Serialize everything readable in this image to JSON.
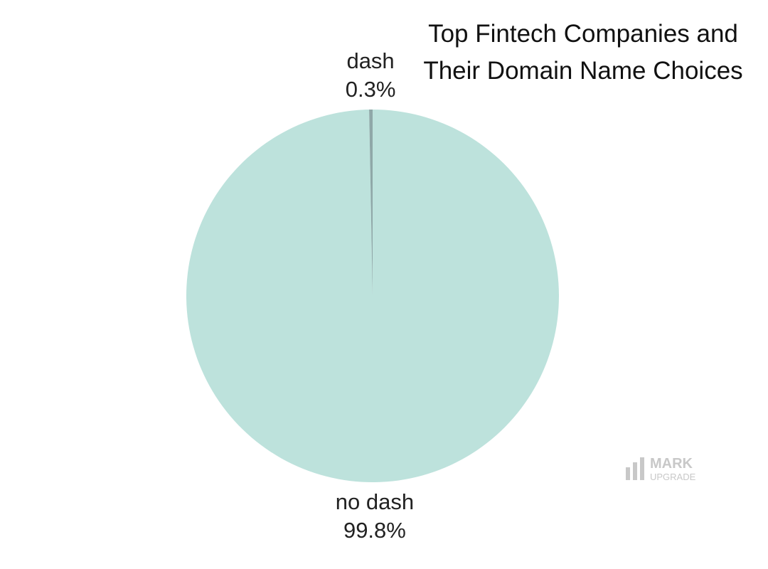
{
  "chart_data": {
    "type": "pie",
    "title": "Top Fintech Companies and Their Domain Name Choices",
    "categories": [
      "no dash",
      "dash"
    ],
    "values": [
      99.8,
      0.3
    ],
    "value_labels": [
      "99.8%",
      "0.3%"
    ],
    "colors": [
      "#bde2dc",
      "#8fa8a8"
    ]
  },
  "watermark": {
    "line1": "MARK",
    "line2": "UPGRADE"
  }
}
